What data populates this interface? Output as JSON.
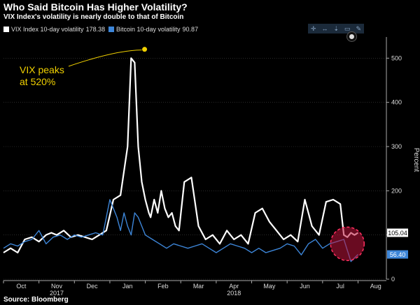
{
  "chart_data": {
    "type": "line",
    "title": "Who Said Bitcoin Has Higher Volatility?",
    "subtitle": "VIX Index's volatility is nearly double to that of Bitcoin",
    "source": "Source: Bloomberg",
    "ylabel": "Percent",
    "ylim": [
      0,
      540
    ],
    "yticks": [
      0,
      100,
      200,
      300,
      400,
      500
    ],
    "months": [
      "Oct",
      "Nov",
      "Dec",
      "Jan",
      "Feb",
      "Mar",
      "Apr",
      "May",
      "Jun",
      "Jul",
      "Aug"
    ],
    "year_labels": [
      {
        "label": "2017",
        "month": "Nov"
      },
      {
        "label": "2018",
        "month": "Apr"
      }
    ],
    "x_range": [
      0,
      10.8
    ],
    "series": [
      {
        "name": "VIX Index 10-day volatility",
        "last": "178.38",
        "end_label": "105.04",
        "color": "#ffffff",
        "x": [
          0,
          0.2,
          0.4,
          0.6,
          0.8,
          1.0,
          1.2,
          1.35,
          1.5,
          1.7,
          1.9,
          2.1,
          2.3,
          2.5,
          2.7,
          2.9,
          3.1,
          3.3,
          3.5,
          3.6,
          3.7,
          3.8,
          3.9,
          4.0,
          4.1,
          4.15,
          4.25,
          4.35,
          4.45,
          4.55,
          4.65,
          4.75,
          4.85,
          4.95,
          5.1,
          5.3,
          5.5,
          5.7,
          5.9,
          6.1,
          6.3,
          6.5,
          6.7,
          6.9,
          7.1,
          7.3,
          7.5,
          7.7,
          7.9,
          8.1,
          8.3,
          8.5,
          8.7,
          8.9,
          9.1,
          9.3,
          9.5,
          9.6,
          9.7,
          9.8,
          9.9,
          10.0
        ],
        "y": [
          60,
          70,
          60,
          90,
          95,
          85,
          100,
          105,
          100,
          110,
          95,
          100,
          95,
          90,
          100,
          110,
          180,
          190,
          300,
          500,
          490,
          300,
          220,
          180,
          150,
          140,
          180,
          150,
          200,
          160,
          140,
          150,
          120,
          110,
          220,
          230,
          120,
          90,
          100,
          80,
          110,
          90,
          100,
          80,
          150,
          160,
          130,
          110,
          90,
          100,
          85,
          180,
          120,
          100,
          175,
          180,
          170,
          100,
          95,
          105,
          100,
          105
        ]
      },
      {
        "name": "Bitcoin 10-day volatility",
        "last": "90.87",
        "end_label": "56.40",
        "color": "#3d86d9",
        "x": [
          0,
          0.2,
          0.4,
          0.6,
          0.8,
          1.0,
          1.2,
          1.4,
          1.6,
          1.8,
          2.0,
          2.2,
          2.4,
          2.6,
          2.8,
          3.0,
          3.1,
          3.2,
          3.3,
          3.4,
          3.5,
          3.6,
          3.7,
          3.8,
          4.0,
          4.2,
          4.4,
          4.6,
          4.8,
          5.0,
          5.2,
          5.4,
          5.6,
          5.8,
          6.0,
          6.2,
          6.4,
          6.6,
          6.8,
          7.0,
          7.2,
          7.4,
          7.6,
          7.8,
          8.0,
          8.2,
          8.4,
          8.6,
          8.8,
          9.0,
          9.2,
          9.4,
          9.6,
          9.8,
          10.0
        ],
        "y": [
          70,
          80,
          75,
          85,
          90,
          110,
          80,
          95,
          100,
          90,
          100,
          95,
          100,
          105,
          100,
          180,
          160,
          140,
          110,
          150,
          120,
          100,
          150,
          140,
          100,
          90,
          80,
          70,
          80,
          75,
          70,
          75,
          80,
          70,
          60,
          70,
          80,
          75,
          70,
          60,
          70,
          60,
          65,
          70,
          80,
          75,
          55,
          80,
          90,
          70,
          80,
          85,
          90,
          40,
          56
        ]
      }
    ],
    "annotation": {
      "text_line1": "VIX peaks",
      "text_line2": "at 520%",
      "color": "#f0d000",
      "peak_x": 3.98,
      "peak_y": 520
    },
    "highlight": {
      "x": 9.7,
      "y": 80,
      "color": "#c0143c"
    }
  },
  "toolbar": {
    "icons": [
      "✛",
      "↔",
      "⇣",
      "▭",
      "✎"
    ]
  }
}
